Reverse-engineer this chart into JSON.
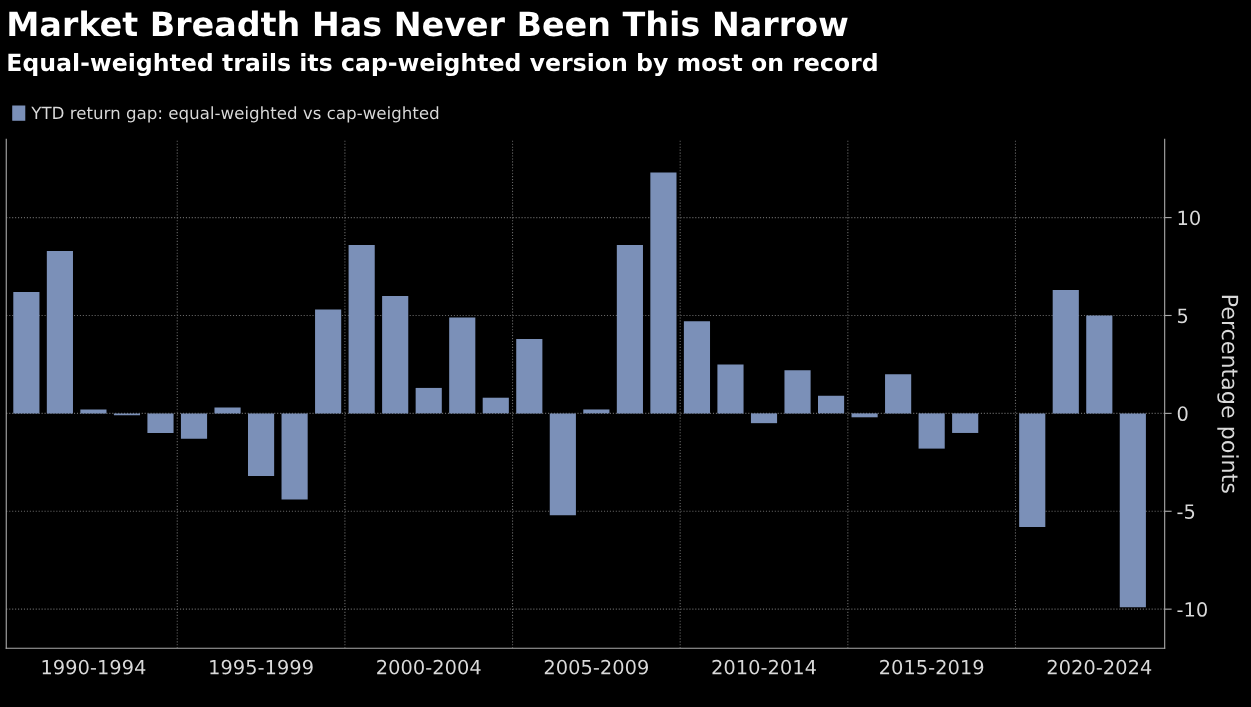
{
  "chart_data": {
    "type": "bar",
    "title": "Market Breadth Has Never Been This Narrow",
    "subtitle": "Equal-weighted trails its cap-weighted version by most on record",
    "ylabel": "Percentage points",
    "categories": [
      null,
      null,
      "1990-1994",
      null,
      null,
      null,
      null,
      "1995-1999",
      null,
      null,
      null,
      null,
      "2000-2004",
      null,
      null,
      null,
      null,
      "2005-2009",
      null,
      null,
      null,
      null,
      "2010-2014",
      null,
      null,
      null,
      null,
      "2015-2019",
      null,
      null,
      null,
      null,
      "2020-2024",
      null
    ],
    "series": [
      {
        "name": "YTD return gap: equal-weighted vs cap-weighted",
        "color": "#7b90b8",
        "values": [
          6.2,
          8.3,
          0.2,
          -0.1,
          -1.0,
          -1.3,
          0.3,
          -3.2,
          -4.4,
          5.3,
          8.6,
          6.0,
          1.3,
          4.9,
          0.8,
          3.8,
          -5.2,
          0.2,
          8.6,
          12.3,
          4.7,
          2.5,
          -0.5,
          2.2,
          0.9,
          -0.2,
          2.0,
          -1.8,
          -1.0,
          0,
          -5.8,
          6.3,
          5.0,
          -9.9
        ]
      }
    ],
    "ylim": [
      -12,
      14
    ],
    "yticks": [
      -10,
      -5,
      0,
      5,
      10
    ],
    "grid": true,
    "legend": "top left"
  }
}
